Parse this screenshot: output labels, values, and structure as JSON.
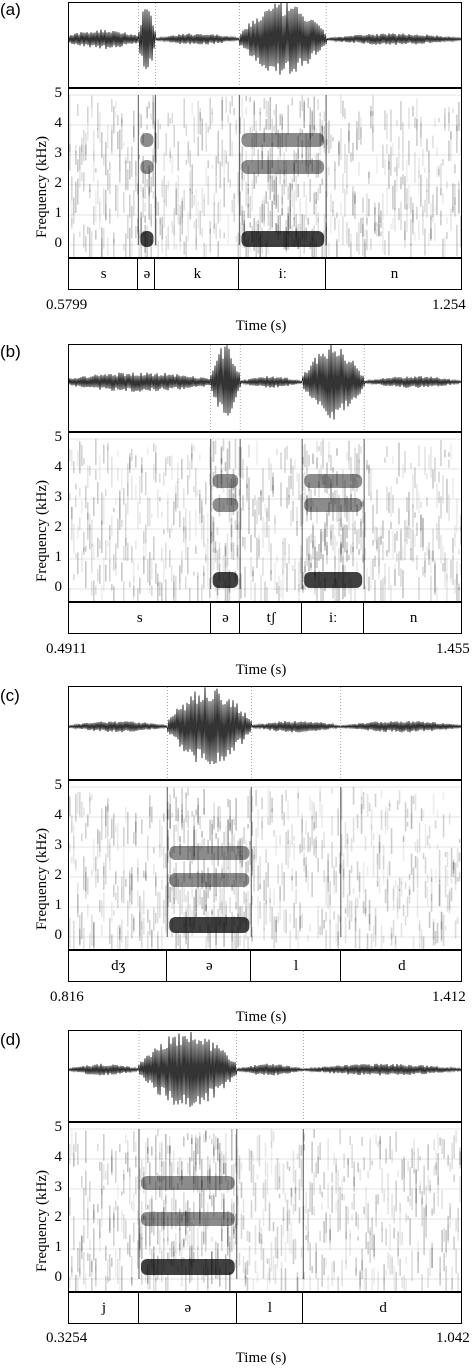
{
  "chart_data": [
    {
      "panel": "(a)",
      "type": "spectrogram",
      "ylabel": "Frequency (kHz)",
      "yticks": [
        "5",
        "4",
        "3",
        "2",
        "1",
        "0"
      ],
      "ylim": [
        0,
        5
      ],
      "xlabel": "Time (s)",
      "xlim": [
        0.5799,
        1.254
      ],
      "xstart_label": "0.5799",
      "xend_label": "1.254",
      "segments": [
        {
          "label": "s",
          "start": 0.5799,
          "end": 0.6986
        },
        {
          "label": "ə",
          "start": 0.6986,
          "end": 0.7278
        },
        {
          "label": "k",
          "start": 0.7278,
          "end": 0.8715
        },
        {
          "label": "iː",
          "start": 0.8715,
          "end": 1.0198
        },
        {
          "label": "n",
          "start": 1.0198,
          "end": 1.254
        }
      ],
      "formants_kHz": [
        0.2,
        2.6,
        3.5
      ]
    },
    {
      "panel": "(b)",
      "type": "spectrogram",
      "ylabel": "Frequency (kHz)",
      "yticks": [
        "5",
        "4",
        "3",
        "2",
        "1",
        "0"
      ],
      "ylim": [
        0,
        5
      ],
      "xlabel": "Time (s)",
      "xlim": [
        0.4911,
        1.455
      ],
      "xstart_label": "0.4911",
      "xend_label": "1.455",
      "segments": [
        {
          "label": "s",
          "start": 0.4911,
          "end": 0.8377
        },
        {
          "label": "ə",
          "start": 0.8377,
          "end": 0.9099
        },
        {
          "label": "tʃ",
          "start": 0.9099,
          "end": 1.0616
        },
        {
          "label": "iː",
          "start": 1.0616,
          "end": 1.2132
        },
        {
          "label": "n",
          "start": 1.2132,
          "end": 1.455
        }
      ],
      "formants_kHz": [
        0.3,
        2.8,
        3.6
      ]
    },
    {
      "panel": "(c)",
      "type": "spectrogram",
      "ylabel": "Frequency (kHz)",
      "yticks": [
        "5",
        "4",
        "3",
        "2",
        "1",
        "0"
      ],
      "ylim": [
        0,
        5
      ],
      "xlabel": "Time (s)",
      "xlim": [
        0.816,
        1.412
      ],
      "xstart_label": "0.816",
      "xend_label": "1.412",
      "segments": [
        {
          "label": "dʒ",
          "start": 0.816,
          "end": 0.9647
        },
        {
          "label": "ə",
          "start": 0.9647,
          "end": 1.0918
        },
        {
          "label": "l",
          "start": 1.0918,
          "end": 1.2271
        },
        {
          "label": "d",
          "start": 1.2271,
          "end": 1.412
        }
      ],
      "formants_kHz": [
        0.4,
        1.9,
        2.8
      ]
    },
    {
      "panel": "(d)",
      "type": "spectrogram",
      "ylabel": "Frequency (kHz)",
      "yticks": [
        "5",
        "4",
        "3",
        "2",
        "1",
        "0"
      ],
      "ylim": [
        0,
        5
      ],
      "xlabel": "Time (s)",
      "xlim": [
        0.3254,
        1.042
      ],
      "xstart_label": "0.3254",
      "xend_label": "1.042",
      "segments": [
        {
          "label": "j",
          "start": 0.3254,
          "end": 0.4527
        },
        {
          "label": "ə",
          "start": 0.4527,
          "end": 0.6304
        },
        {
          "label": "l",
          "start": 0.6304,
          "end": 0.7516
        },
        {
          "label": "d",
          "start": 0.7516,
          "end": 1.042
        }
      ],
      "formants_kHz": [
        0.4,
        2.0,
        3.2
      ]
    }
  ],
  "panels": [
    {
      "label": "(a)"
    },
    {
      "label": "(b)"
    },
    {
      "label": "(c)"
    },
    {
      "label": "(d)"
    }
  ]
}
